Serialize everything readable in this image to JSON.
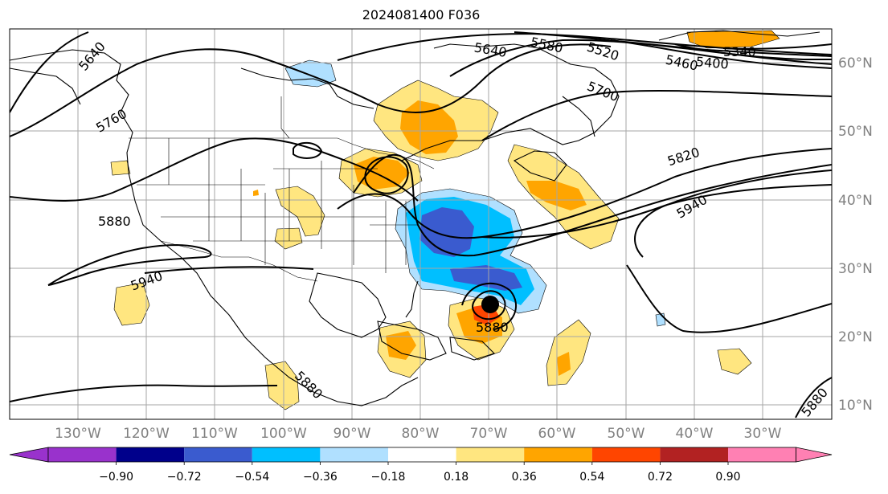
{
  "title": "2024081400 F036",
  "map": {
    "projection": "plate-carree",
    "lon_labels": [
      "130°W",
      "120°W",
      "110°W",
      "100°W",
      "90°W",
      "80°W",
      "70°W",
      "60°W",
      "50°W",
      "40°W",
      "30°W"
    ],
    "lat_labels": [
      "60°N",
      "50°N",
      "40°N",
      "30°N",
      "20°N",
      "10°N"
    ],
    "grid": true,
    "contour_labels": [
      "5640",
      "5760",
      "5880",
      "5940",
      "5640",
      "5580",
      "5520",
      "5460",
      "5400",
      "5340",
      "5700",
      "5820",
      "5940",
      "5880",
      "5880",
      "5880"
    ]
  },
  "colorbar": {
    "tick_labels": [
      "−0.90",
      "−0.72",
      "−0.54",
      "−0.36",
      "−0.18",
      "0.18",
      "0.36",
      "0.54",
      "0.72",
      "0.90"
    ],
    "colors": [
      "#9932cc",
      "#00008b",
      "#3a5bcf",
      "#00bfff",
      "#b0e0ff",
      "#ffffff",
      "#ffe680",
      "#ffa500",
      "#ff4500",
      "#b22222",
      "#ff80b3"
    ],
    "extend": "both"
  }
}
